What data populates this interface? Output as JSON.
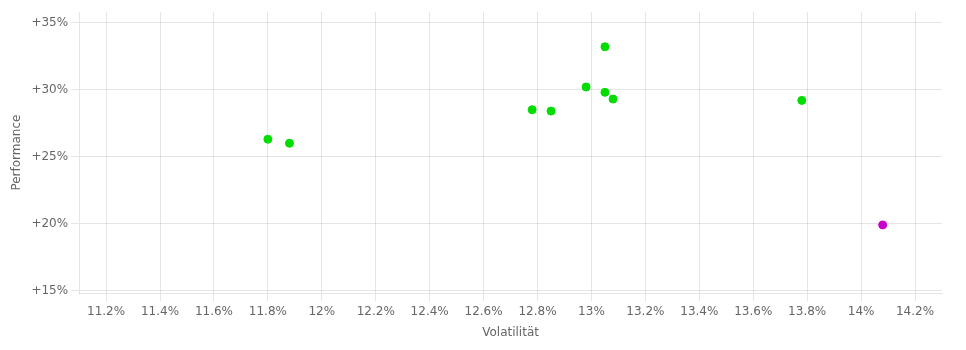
{
  "chart_data": {
    "type": "scatter",
    "xlabel": "Volatilität",
    "ylabel": "Performance",
    "series": [
      {
        "color": "#00dd00",
        "x": [
          0.118,
          0.1188,
          0.1278,
          0.1285,
          0.1298,
          0.1305,
          0.1308,
          0.1305,
          0.1378
        ],
        "values": [
          0.263,
          0.26,
          0.285,
          0.284,
          0.302,
          0.298,
          0.293,
          0.332,
          0.292
        ]
      },
      {
        "color": "#cc00cc",
        "x": [
          0.1408
        ],
        "values": [
          0.199
        ]
      }
    ],
    "xlim": [
      0.111,
      0.143
    ],
    "ylim": [
      0.148,
      0.358
    ],
    "xticks": [
      {
        "value": 0.112,
        "label": "11.2%"
      },
      {
        "value": 0.114,
        "label": "11.4%"
      },
      {
        "value": 0.116,
        "label": "11.6%"
      },
      {
        "value": 0.118,
        "label": "11.8%"
      },
      {
        "value": 0.12,
        "label": "12%"
      },
      {
        "value": 0.122,
        "label": "12.2%"
      },
      {
        "value": 0.124,
        "label": "12.4%"
      },
      {
        "value": 0.126,
        "label": "12.6%"
      },
      {
        "value": 0.128,
        "label": "12.8%"
      },
      {
        "value": 0.13,
        "label": "13%"
      },
      {
        "value": 0.132,
        "label": "13.2%"
      },
      {
        "value": 0.134,
        "label": "13.4%"
      },
      {
        "value": 0.136,
        "label": "13.6%"
      },
      {
        "value": 0.138,
        "label": "13.8%"
      },
      {
        "value": 0.14,
        "label": "14%"
      },
      {
        "value": 0.142,
        "label": "14.2%"
      }
    ],
    "yticks": [
      {
        "value": 0.15,
        "label": "+15%"
      },
      {
        "value": 0.2,
        "label": "+20%"
      },
      {
        "value": 0.25,
        "label": "+25%"
      },
      {
        "value": 0.3,
        "label": "+30%"
      },
      {
        "value": 0.35,
        "label": "+35%"
      }
    ],
    "grid": true
  }
}
